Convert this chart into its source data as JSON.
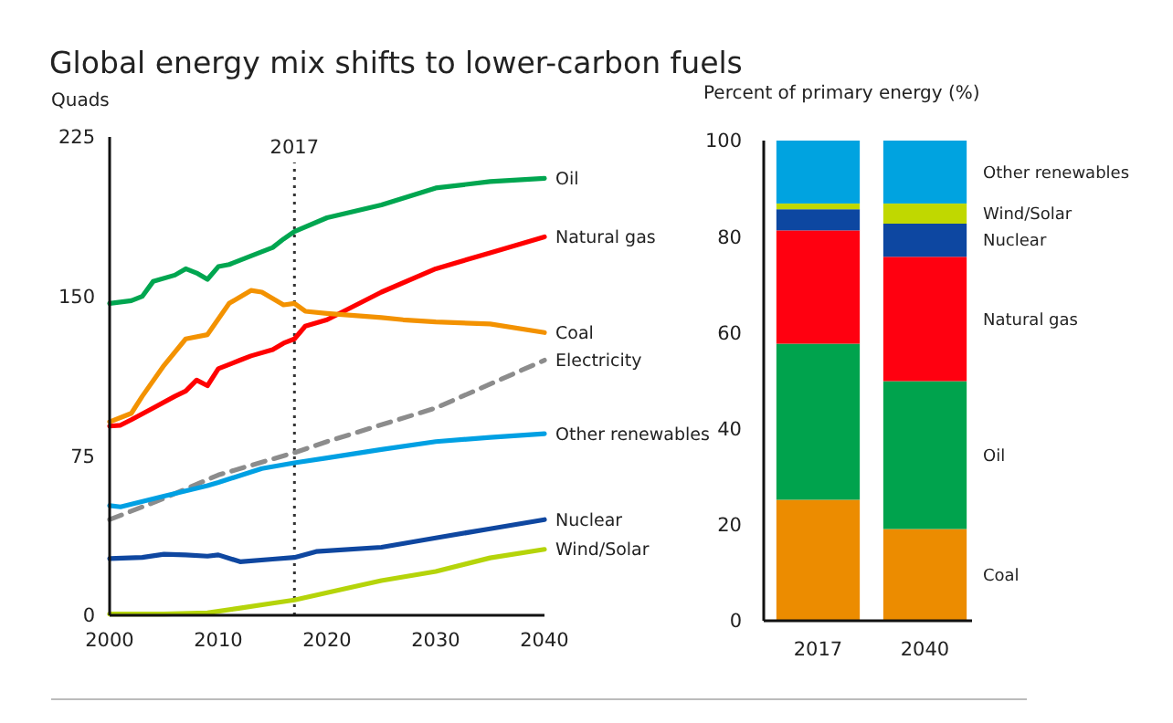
{
  "chart_data": [
    {
      "type": "line",
      "title": "Global energy mix shifts to lower-carbon fuels",
      "ylabel": "Quads",
      "xlim": [
        2000,
        2040
      ],
      "xticks": [
        2000,
        2010,
        2020,
        2030,
        2040
      ],
      "ylim": [
        0,
        225
      ],
      "yticks": [
        0,
        75,
        150,
        225
      ],
      "ref_lines": [
        {
          "axis": "x",
          "value": 2017,
          "label": "2017",
          "line_style": "dotted",
          "color": "#333333"
        }
      ],
      "series": [
        {
          "name": "Oil",
          "color": "#00a650",
          "x": [
            2000,
            2002,
            2003,
            2004,
            2006,
            2007,
            2008,
            2009,
            2010,
            2011,
            2013,
            2015,
            2016,
            2017,
            2020,
            2025,
            2030,
            2035,
            2040
          ],
          "values": [
            146.7,
            148,
            150,
            157,
            160,
            163,
            161,
            158,
            164,
            165,
            169,
            173,
            177,
            180.5,
            187,
            193,
            201,
            204,
            205.5
          ]
        },
        {
          "name": "Natural gas",
          "color": "#ff0000",
          "x": [
            2000,
            2001,
            2002,
            2004,
            2006,
            2007,
            2008,
            2009,
            2010,
            2012,
            2013,
            2015,
            2016,
            2017,
            2018,
            2020,
            2025,
            2030,
            2035,
            2040
          ],
          "values": [
            89,
            89.4,
            92,
            97.5,
            103,
            105.5,
            110.6,
            108,
            116,
            120,
            122,
            125,
            128,
            130,
            136,
            139,
            152,
            163,
            170.5,
            178
          ]
        },
        {
          "name": "Coal",
          "color": "#f39200",
          "x": [
            2000,
            2002,
            2003,
            2005,
            2007,
            2009,
            2011,
            2013,
            2014,
            2016,
            2017,
            2018,
            2020,
            2025,
            2027,
            2030,
            2035,
            2040
          ],
          "values": [
            91,
            95,
            103,
            117.5,
            130,
            132,
            146.7,
            152.8,
            152,
            146,
            146.7,
            143,
            142,
            140,
            139,
            138,
            137,
            133
          ]
        },
        {
          "name": "Electricity",
          "color": "#8c8c8c",
          "line_style": "dashed",
          "x": [
            2000,
            2005,
            2010,
            2017,
            2020,
            2030,
            2040
          ],
          "values": [
            45,
            55,
            66,
            76.5,
            81.7,
            97.5,
            120
          ]
        },
        {
          "name": "Other renewables",
          "color": "#00a0e3",
          "x": [
            2000,
            2001,
            2005,
            2009,
            2010,
            2014,
            2017,
            2020,
            2025,
            2030,
            2035,
            2040
          ],
          "values": [
            51.6,
            51,
            56,
            61,
            62.5,
            69,
            71.7,
            74,
            78,
            81.7,
            83.7,
            85.4
          ]
        },
        {
          "name": "Nuclear",
          "color": "#0f47a0",
          "x": [
            2000,
            2003,
            2005,
            2007,
            2009,
            2010,
            2012,
            2015,
            2017,
            2019,
            2025,
            2030,
            2035,
            2040
          ],
          "values": [
            26.7,
            27.2,
            28.7,
            28.4,
            27.8,
            28.4,
            25.2,
            26.4,
            27.2,
            30,
            32,
            36.4,
            40.7,
            45
          ]
        },
        {
          "name": "Wind/Solar",
          "color": "#b5d40a",
          "x": [
            2000,
            2005,
            2009,
            2012,
            2015,
            2017,
            2020,
            2025,
            2030,
            2035,
            2040
          ],
          "values": [
            0.6,
            0.6,
            1.1,
            3.4,
            5.7,
            7.2,
            10.6,
            16.3,
            20.6,
            27,
            31
          ]
        }
      ]
    },
    {
      "type": "bar",
      "stacked": true,
      "ylabel": "Percent of primary energy (%)",
      "categories": [
        "2017",
        "2040"
      ],
      "ylim": [
        0,
        100
      ],
      "yticks": [
        0,
        20,
        40,
        60,
        80,
        100
      ],
      "series": [
        {
          "name": "Coal",
          "color": "#ec8c00",
          "values": [
            25.2,
            19.1
          ]
        },
        {
          "name": "Oil",
          "color": "#00a34d",
          "values": [
            32.5,
            30.8
          ]
        },
        {
          "name": "Natural gas",
          "color": "#ff0010",
          "values": [
            23.6,
            25.9
          ]
        },
        {
          "name": "Nuclear",
          "color": "#0d47a1",
          "values": [
            4.4,
            6.9
          ]
        },
        {
          "name": "Wind/Solar",
          "color": "#c0d800",
          "values": [
            1.2,
            4.2
          ]
        },
        {
          "name": "Other renewables",
          "color": "#00a3e0",
          "values": [
            13.1,
            13.1
          ]
        }
      ]
    }
  ]
}
